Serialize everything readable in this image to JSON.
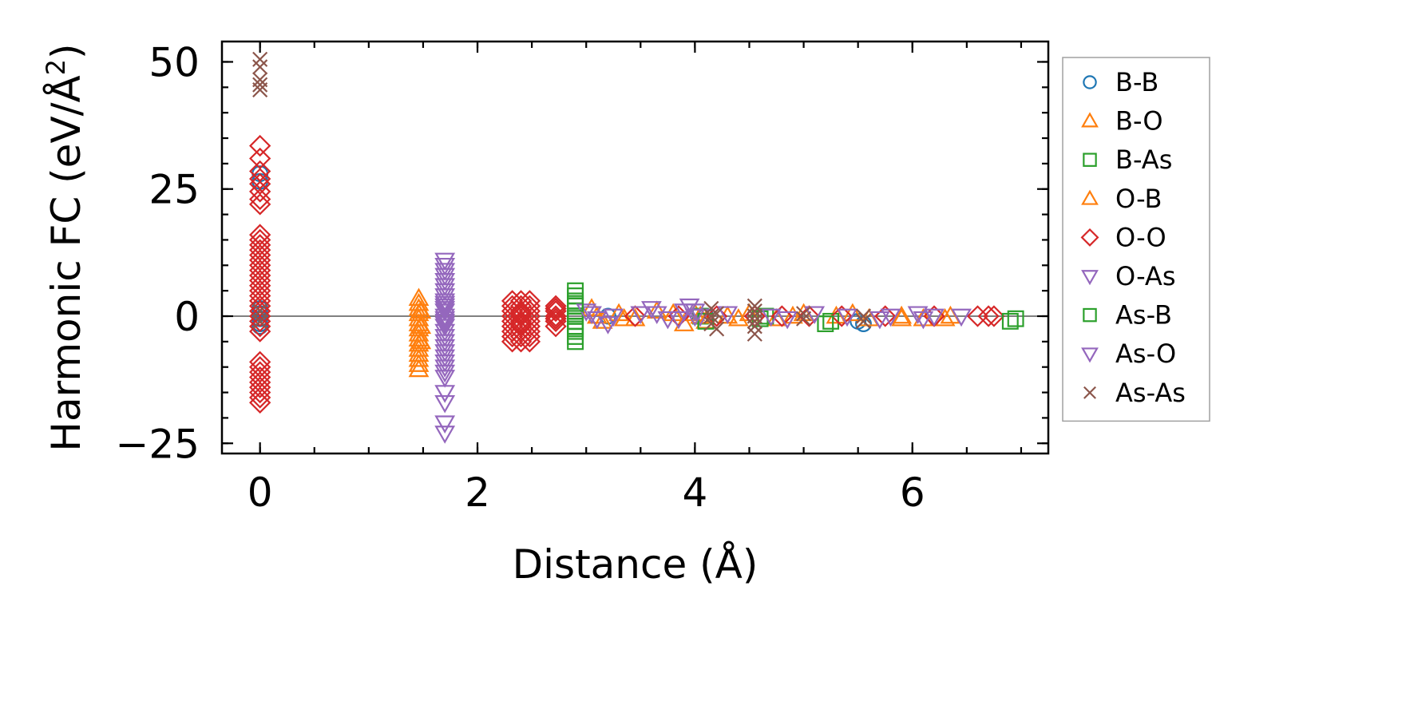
{
  "chart_data": {
    "type": "scatter",
    "title": "",
    "xlabel": "Distance (Å)",
    "ylabel_main": "Harmonic FC (eV/Å",
    "ylabel_sup": "2",
    "ylabel_close": ")",
    "xlim": [
      -0.35,
      7.25
    ],
    "ylim": [
      -27,
      54
    ],
    "xticks": [
      0,
      2,
      4,
      6
    ],
    "xtick_labels": [
      "0",
      "2",
      "4",
      "6"
    ],
    "yticks": [
      -25,
      0,
      25,
      50
    ],
    "ytick_labels": [
      "−25",
      "0",
      "25",
      "50"
    ],
    "x_minor_step": 0.5,
    "y_minor_step": 5,
    "grid": false,
    "zero_line": true,
    "legend_position": "outside-right",
    "series": [
      {
        "name": "B-B",
        "marker": "circle",
        "color": "#1f77b4",
        "x": [
          0,
          0,
          0,
          0,
          0,
          0,
          0,
          3.2,
          4.1,
          5.5,
          5.55
        ],
        "y": [
          28,
          26.5,
          1.5,
          0.5,
          -0.5,
          -1.5,
          -2,
          0,
          0,
          -1,
          -1.5
        ]
      },
      {
        "name": "B-O",
        "marker": "triangle-up",
        "color": "#ff7f0e",
        "x": [
          1.46,
          1.46,
          1.46,
          1.46,
          1.46,
          1.46,
          1.46,
          1.46,
          1.46,
          1.46,
          1.46,
          1.46,
          1.46,
          1.46,
          1.46,
          3.05,
          3.15,
          3.3,
          3.45,
          3.65,
          3.9,
          4.0,
          4.1,
          4.3,
          4.5,
          4.75,
          5.0,
          5.3,
          5.6,
          5.9,
          6.1,
          6.3
        ],
        "y": [
          3.5,
          2.5,
          1.5,
          0.5,
          -0.5,
          -1.5,
          -2.5,
          -3.5,
          -4.5,
          -5.5,
          -6.5,
          -7.5,
          -8.5,
          -9.5,
          -10.5,
          1.5,
          -1,
          0.5,
          -0.5,
          1,
          -1.5,
          0.5,
          -1,
          0,
          0.5,
          -0.5,
          0.5,
          0,
          -0.5,
          0,
          -0.5,
          -0.5
        ]
      },
      {
        "name": "B-As",
        "marker": "square",
        "color": "#2ca02c",
        "x": [
          2.9,
          2.9,
          2.9,
          2.9,
          2.9,
          2.9,
          2.9,
          2.9,
          2.9,
          2.9,
          2.9,
          4.05,
          4.65,
          5.25,
          6.95
        ],
        "y": [
          5,
          4,
          3,
          2,
          1,
          0,
          -1,
          -2,
          -3,
          -4,
          -5,
          0,
          0,
          -1,
          -0.5
        ]
      },
      {
        "name": "O-B",
        "marker": "triangle-up",
        "color": "#ff7f0e",
        "x": [
          1.48,
          1.48,
          1.48,
          3.1,
          3.35,
          3.8,
          4.05,
          4.4,
          4.9,
          5.45,
          5.9,
          6.35
        ],
        "y": [
          1,
          -2,
          -5,
          0,
          -0.5,
          0.5,
          0,
          -0.5,
          0,
          0.5,
          -0.5,
          0
        ]
      },
      {
        "name": "O-O",
        "marker": "diamond",
        "color": "#d62728",
        "x": [
          0,
          0,
          0,
          0,
          0,
          0,
          0,
          0,
          0,
          0,
          0,
          0,
          0,
          0,
          0,
          0,
          0,
          0,
          0,
          0,
          0,
          0,
          0,
          0,
          0,
          0,
          0,
          0,
          0,
          0,
          0,
          0,
          0,
          0,
          0,
          0,
          0,
          2.32,
          2.32,
          2.32,
          2.32,
          2.32,
          2.32,
          2.32,
          2.32,
          2.32,
          2.4,
          2.4,
          2.4,
          2.4,
          2.4,
          2.4,
          2.4,
          2.4,
          2.4,
          2.4,
          2.4,
          2.48,
          2.48,
          2.48,
          2.48,
          2.48,
          2.48,
          2.48,
          2.48,
          2.48,
          2.72,
          2.72,
          2.72,
          2.72,
          2.72,
          2.72,
          2.72,
          3.45,
          3.85,
          4.2,
          4.55,
          4.8,
          5.05,
          5.35,
          5.75,
          6.2,
          6.6,
          6.7,
          6.75
        ],
        "y": [
          33.5,
          31,
          28.5,
          27,
          26,
          24.5,
          23,
          22,
          16,
          15,
          14,
          13,
          12,
          11,
          10,
          9,
          8,
          7,
          6,
          5,
          4,
          3,
          2,
          1,
          0,
          -1,
          -2,
          -3,
          -9,
          -10,
          -11,
          -12,
          -13,
          -14,
          -15,
          -16,
          -17,
          3,
          2,
          1,
          0,
          -1,
          -2,
          -3,
          -4,
          -5,
          3,
          2,
          1,
          0,
          -1,
          -2,
          -3,
          -4,
          -5,
          -1.5,
          0.5,
          3,
          2,
          1,
          0,
          -1,
          -2,
          -3,
          -4,
          -5,
          2,
          1,
          0,
          -1,
          -2,
          -0.5,
          1.5,
          0,
          0,
          0,
          0,
          0,
          0,
          0,
          0,
          0,
          0,
          0,
          0
        ]
      },
      {
        "name": "O-As",
        "marker": "triangle-down",
        "color": "#9467bd",
        "x": [
          1.7,
          1.7,
          1.7,
          1.7,
          1.7,
          1.7,
          1.7,
          1.7,
          1.7,
          1.7,
          1.7,
          1.7,
          1.7,
          1.7,
          1.7,
          1.7,
          1.7,
          1.7,
          1.7,
          1.7,
          1.7,
          1.7,
          1.7,
          1.7,
          1.7,
          1.7,
          1.7,
          1.7,
          1.7,
          1.7,
          1.7,
          1.7,
          3.0,
          3.05,
          3.1,
          3.2,
          3.6,
          3.65,
          3.85,
          3.9,
          3.95,
          4.0,
          4.05
        ],
        "y": [
          11,
          10,
          9,
          8,
          7,
          6,
          5,
          4,
          3,
          2,
          1,
          0,
          -1,
          -2,
          -3,
          -4,
          -5,
          -6,
          -7,
          -8,
          -9,
          -10,
          -11,
          -12,
          -15,
          -17,
          -21,
          -23,
          2.5,
          1.5,
          -0.5,
          -1.5,
          1,
          0.5,
          -0.5,
          -1.5,
          1.5,
          0.5,
          -0.5,
          1,
          2,
          1,
          0
        ]
      },
      {
        "name": "As-B",
        "marker": "square",
        "color": "#2ca02c",
        "x": [
          2.9,
          2.9,
          4.1,
          4.6,
          5.2,
          6.9
        ],
        "y": [
          2.5,
          -2.5,
          -1,
          -0.5,
          -1.5,
          -1
        ]
      },
      {
        "name": "As-O",
        "marker": "triangle-down",
        "color": "#9467bd",
        "x": [
          3.25,
          3.5,
          3.75,
          4.0,
          4.3,
          4.7,
          4.85,
          5.1,
          5.4,
          5.7,
          5.8,
          6.05,
          6.1,
          6.2,
          6.45
        ],
        "y": [
          0,
          0.5,
          -0.5,
          0,
          0.5,
          0,
          -0.5,
          0.5,
          0,
          -0.5,
          0,
          0.5,
          -0.5,
          0,
          0
        ]
      },
      {
        "name": "As-As",
        "marker": "x",
        "color": "#8c564b",
        "x": [
          0,
          0,
          0,
          0,
          0,
          0,
          0,
          4.15,
          4.15,
          4.15,
          4.2,
          4.2,
          4.55,
          4.55,
          4.55,
          4.55,
          4.55,
          4.55,
          5.0,
          5.0,
          5.55,
          5.55
        ],
        "y": [
          50.5,
          49,
          46.5,
          45.5,
          44.5,
          1,
          -1,
          1.5,
          0,
          -1.5,
          0.5,
          -2.5,
          2,
          1,
          0,
          -1,
          -2,
          -3.5,
          0.5,
          -0.5,
          0,
          -1
        ]
      }
    ]
  }
}
